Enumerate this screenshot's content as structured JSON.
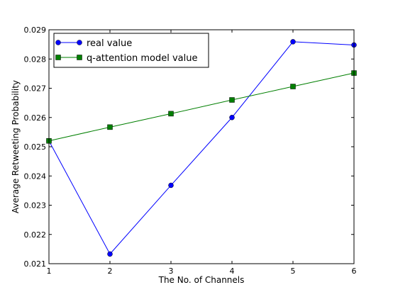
{
  "chart_data": {
    "type": "line",
    "title": "",
    "xlabel": "The No. of Channels",
    "ylabel": "Average Retweeting Probability",
    "xlim": [
      1,
      6
    ],
    "ylim": [
      0.021,
      0.029
    ],
    "x_ticks": [
      1,
      2,
      3,
      4,
      5,
      6
    ],
    "x_tick_labels": [
      "1",
      "2",
      "3",
      "4",
      "5",
      "6"
    ],
    "y_ticks": [
      0.021,
      0.022,
      0.023,
      0.024,
      0.025,
      0.026,
      0.027,
      0.028,
      0.029
    ],
    "y_tick_labels": [
      "0.021",
      "0.022",
      "0.023",
      "0.024",
      "0.025",
      "0.026",
      "0.027",
      "0.028",
      "0.029"
    ],
    "grid": false,
    "legend_position": "top-left",
    "x": [
      1,
      2,
      3,
      4,
      5,
      6
    ],
    "series": [
      {
        "name": "real value",
        "values": [
          0.0252,
          0.02133,
          0.02368,
          0.026,
          0.02859,
          0.02848
        ],
        "color": "#0000ff",
        "marker": "circle"
      },
      {
        "name": "q-attention model value",
        "values": [
          0.0252,
          0.02567,
          0.02613,
          0.0266,
          0.02706,
          0.02752
        ],
        "color": "#007f00",
        "marker": "square"
      }
    ]
  }
}
